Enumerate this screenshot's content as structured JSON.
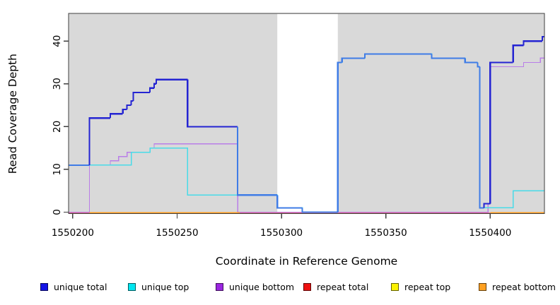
{
  "chart_data": {
    "type": "line",
    "subtype": "step-after-coverage-plot",
    "title": "",
    "xlabel": "Coordinate in Reference Genome",
    "ylabel": "Read Coverage Depth",
    "xlim": [
      1550198,
      1550426
    ],
    "ylim": [
      0,
      46
    ],
    "x_ticks": [
      1550200,
      1550250,
      1550300,
      1550350,
      1550400
    ],
    "y_ticks": [
      0,
      10,
      20,
      30,
      40
    ],
    "grid": "off",
    "plot_bg": "#d9d9d9",
    "white_band_x": [
      1550298,
      1550327
    ],
    "frame_color": "#3f3f3f",
    "series": [
      {
        "name": "unique total",
        "color": "#2424d2",
        "overlap_color": "#3f7ce6",
        "values": [
          [
            1550198,
            11
          ],
          [
            1550208,
            22
          ],
          [
            1550218,
            23
          ],
          [
            1550224,
            24
          ],
          [
            1550226,
            25
          ],
          [
            1550228,
            26
          ],
          [
            1550229,
            28
          ],
          [
            1550237,
            29
          ],
          [
            1550239,
            30
          ],
          [
            1550240,
            31
          ],
          [
            1550255,
            20
          ],
          [
            1550279,
            4
          ],
          [
            1550298,
            1
          ],
          [
            1550310,
            0
          ],
          [
            1550327,
            35
          ],
          [
            1550329,
            36
          ],
          [
            1550340,
            37
          ],
          [
            1550372,
            36
          ],
          [
            1550388,
            35
          ],
          [
            1550394,
            34
          ],
          [
            1550395,
            1
          ],
          [
            1550397,
            2
          ],
          [
            1550400,
            35
          ],
          [
            1550411,
            39
          ],
          [
            1550416,
            40
          ],
          [
            1550425,
            41
          ]
        ]
      },
      {
        "name": "unique top",
        "color": "#49dbe8",
        "values": [
          [
            1550198,
            11
          ],
          [
            1550228,
            14
          ],
          [
            1550237,
            15
          ],
          [
            1550255,
            4
          ],
          [
            1550298,
            1
          ],
          [
            1550310,
            0
          ],
          [
            1550327,
            35
          ],
          [
            1550329,
            36
          ],
          [
            1550340,
            37
          ],
          [
            1550372,
            36
          ],
          [
            1550388,
            35
          ],
          [
            1550394,
            34
          ],
          [
            1550395,
            1
          ],
          [
            1550411,
            5
          ]
        ]
      },
      {
        "name": "unique bottom",
        "color": "#b97ee8",
        "values": [
          [
            1550198,
            0
          ],
          [
            1550208,
            11
          ],
          [
            1550218,
            12
          ],
          [
            1550222,
            13
          ],
          [
            1550226,
            14
          ],
          [
            1550237,
            15
          ],
          [
            1550239,
            16
          ],
          [
            1550279,
            0
          ],
          [
            1550399,
            2
          ],
          [
            1550400,
            34
          ],
          [
            1550416,
            35
          ],
          [
            1550424,
            36
          ]
        ]
      },
      {
        "name": "repeat total",
        "color": "#e06888",
        "values": [
          [
            1550198,
            0
          ]
        ]
      },
      {
        "name": "repeat top",
        "color": "#f0e000",
        "values": [
          [
            1550198,
            0
          ]
        ]
      },
      {
        "name": "repeat bottom",
        "color": "#ff9d1e",
        "values": [
          [
            1550208,
            0
          ],
          [
            1550280,
            null
          ],
          [
            1550400,
            0
          ]
        ]
      }
    ],
    "draw_order": [
      "repeat top",
      "unique bottom",
      "unique top",
      "repeat total",
      "repeat bottom",
      "unique total"
    ],
    "legend_position": "bottom"
  },
  "legend": {
    "items": [
      {
        "label": "unique total",
        "swatch": "#1414e6"
      },
      {
        "label": "unique top",
        "swatch": "#00e6f0"
      },
      {
        "label": "unique bottom",
        "swatch": "#9b26e0"
      },
      {
        "label": "repeat total",
        "swatch": "#ee1111"
      },
      {
        "label": "repeat top",
        "swatch": "#fbf200"
      },
      {
        "label": "repeat bottom",
        "swatch": "#ffa021"
      }
    ]
  }
}
